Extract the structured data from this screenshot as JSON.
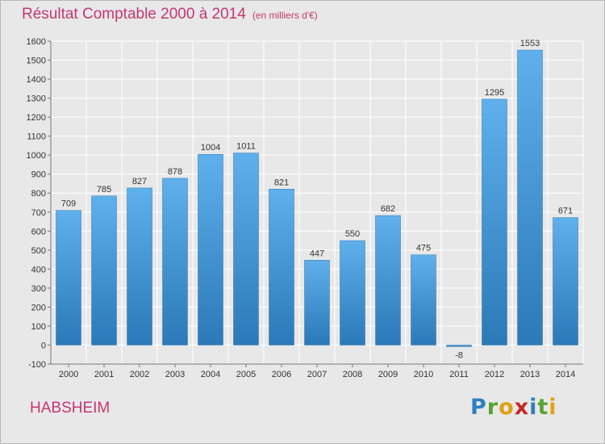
{
  "chart_data": {
    "type": "bar",
    "title": "Résultat Comptable 2000 à 2014",
    "subtitle": "(en milliers d'€)",
    "categories": [
      "2000",
      "2001",
      "2002",
      "2003",
      "2004",
      "2005",
      "2006",
      "2007",
      "2008",
      "2009",
      "2010",
      "2011",
      "2012",
      "2013",
      "2014"
    ],
    "values": [
      709,
      785,
      827,
      878,
      1004,
      1011,
      821,
      447,
      550,
      682,
      475,
      -8,
      1295,
      1553,
      671
    ],
    "ylim": [
      -100,
      1600
    ],
    "yticks": [
      "-100",
      "0",
      "100",
      "200",
      "300",
      "400",
      "500",
      "600",
      "700",
      "800",
      "900",
      "1000",
      "1100",
      "1200",
      "1300",
      "1400",
      "1500",
      "1600"
    ],
    "grid": true,
    "colors": {
      "bar": "#3d93d6",
      "bar_light": "#5fb0ec",
      "bar_dark": "#2b79b8",
      "grid": "#ffffff",
      "text": "#333333"
    }
  },
  "footer": {
    "commune": "HABSHEIM",
    "logo_letters": [
      "P",
      "r",
      "o",
      "x",
      "i",
      "t",
      "i"
    ]
  }
}
